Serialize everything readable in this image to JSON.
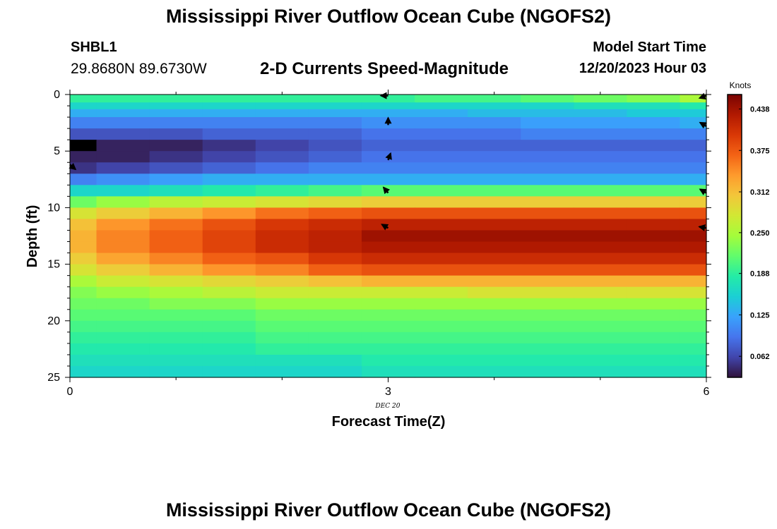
{
  "header": {
    "title": "Mississippi River Outflow Ocean Cube (NGOFS2)",
    "station_id": "SHBL1",
    "coords": "29.8680N  89.6730W",
    "model_start_label": "Model Start Time",
    "model_start_value": "12/20/2023 Hour 03"
  },
  "footer": {
    "title": "Mississippi River Outflow Ocean Cube (NGOFS2)"
  },
  "chart_data": {
    "type": "heatmap",
    "title": "2-D Currents Speed-Magnitude",
    "xlabel": "Forecast Time(Z)",
    "ylabel": "Depth (ft)",
    "xlim": [
      0,
      6
    ],
    "ylim": [
      25,
      0
    ],
    "x_ticks": [
      0,
      3,
      6
    ],
    "y_ticks": [
      0,
      5,
      10,
      15,
      20,
      25
    ],
    "date_label": "DEC 20",
    "colorbar": {
      "label": "Knots",
      "min": 0.03,
      "max": 0.46,
      "ticks": [
        0.062,
        0.125,
        0.188,
        0.25,
        0.312,
        0.375,
        0.438
      ],
      "tick_labels": [
        "0.062",
        "0.125",
        "0.188",
        "0.250",
        "0.312",
        "0.375",
        "0.438"
      ],
      "colors": [
        "#30123b",
        "#4145ab",
        "#4675ed",
        "#39a2fc",
        "#1bcfd4",
        "#24eca6",
        "#61fc6c",
        "#a4fc3b",
        "#d1e834",
        "#f3c63a",
        "#fe9b2d",
        "#f36315",
        "#d93806",
        "#b11901",
        "#7a0402"
      ]
    },
    "columns_x": [
      0,
      0.5,
      1,
      1.5,
      2,
      2.5,
      3,
      3.5,
      4,
      4.5,
      5,
      5.5,
      6
    ],
    "rows_depth": [
      0.3,
      1.1,
      1.5,
      2.5,
      3.5,
      4.5,
      5.5,
      6.5,
      7.5,
      8.5,
      9.5,
      10.5,
      11.5,
      12.5,
      13.5,
      14.5,
      15.5,
      16.5,
      17.5,
      18.5,
      19.5,
      20.5,
      21.5,
      22.5,
      23.5,
      24.5
    ],
    "grid": [
      [
        0.19,
        0.19,
        0.19,
        0.19,
        0.19,
        0.19,
        0.19,
        0.2,
        0.2,
        0.21,
        0.22,
        0.23,
        0.25
      ],
      [
        0.16,
        0.16,
        0.16,
        0.16,
        0.16,
        0.16,
        0.16,
        0.16,
        0.16,
        0.16,
        0.17,
        0.17,
        0.18
      ],
      [
        0.13,
        0.13,
        0.13,
        0.13,
        0.13,
        0.13,
        0.13,
        0.13,
        0.14,
        0.14,
        0.14,
        0.15,
        0.15
      ],
      [
        0.1,
        0.1,
        0.1,
        0.1,
        0.1,
        0.1,
        0.11,
        0.11,
        0.11,
        0.12,
        0.12,
        0.12,
        0.13
      ],
      [
        0.07,
        0.07,
        0.07,
        0.08,
        0.08,
        0.08,
        0.09,
        0.09,
        0.09,
        0.1,
        0.1,
        0.1,
        0.1
      ],
      [
        0.03,
        0.04,
        0.04,
        0.05,
        0.06,
        0.07,
        0.08,
        0.08,
        0.08,
        0.08,
        0.08,
        0.08,
        0.08
      ],
      [
        0.04,
        0.04,
        0.05,
        0.06,
        0.07,
        0.08,
        0.09,
        0.09,
        0.09,
        0.09,
        0.09,
        0.09,
        0.09
      ],
      [
        0.05,
        0.06,
        0.07,
        0.08,
        0.09,
        0.1,
        0.1,
        0.1,
        0.1,
        0.1,
        0.1,
        0.1,
        0.1
      ],
      [
        0.1,
        0.11,
        0.12,
        0.13,
        0.13,
        0.13,
        0.13,
        0.13,
        0.13,
        0.13,
        0.13,
        0.13,
        0.13
      ],
      [
        0.16,
        0.16,
        0.17,
        0.18,
        0.19,
        0.2,
        0.21,
        0.21,
        0.21,
        0.21,
        0.21,
        0.21,
        0.21
      ],
      [
        0.22,
        0.24,
        0.26,
        0.27,
        0.28,
        0.29,
        0.3,
        0.3,
        0.3,
        0.3,
        0.3,
        0.3,
        0.3
      ],
      [
        0.28,
        0.3,
        0.32,
        0.34,
        0.36,
        0.37,
        0.38,
        0.38,
        0.38,
        0.38,
        0.38,
        0.38,
        0.38
      ],
      [
        0.31,
        0.34,
        0.36,
        0.38,
        0.4,
        0.41,
        0.42,
        0.42,
        0.42,
        0.42,
        0.42,
        0.42,
        0.42
      ],
      [
        0.32,
        0.35,
        0.37,
        0.39,
        0.41,
        0.42,
        0.44,
        0.44,
        0.44,
        0.44,
        0.44,
        0.44,
        0.44
      ],
      [
        0.32,
        0.35,
        0.37,
        0.39,
        0.41,
        0.42,
        0.43,
        0.43,
        0.43,
        0.43,
        0.43,
        0.43,
        0.43
      ],
      [
        0.3,
        0.33,
        0.35,
        0.37,
        0.38,
        0.4,
        0.41,
        0.41,
        0.41,
        0.41,
        0.41,
        0.41,
        0.41
      ],
      [
        0.28,
        0.3,
        0.32,
        0.34,
        0.35,
        0.37,
        0.38,
        0.38,
        0.38,
        0.38,
        0.38,
        0.38,
        0.38
      ],
      [
        0.25,
        0.27,
        0.28,
        0.29,
        0.3,
        0.31,
        0.32,
        0.32,
        0.32,
        0.32,
        0.32,
        0.32,
        0.32
      ],
      [
        0.23,
        0.24,
        0.25,
        0.26,
        0.27,
        0.27,
        0.27,
        0.27,
        0.28,
        0.28,
        0.28,
        0.28,
        0.28
      ],
      [
        0.22,
        0.22,
        0.23,
        0.23,
        0.24,
        0.24,
        0.24,
        0.24,
        0.24,
        0.24,
        0.24,
        0.24,
        0.24
      ],
      [
        0.21,
        0.21,
        0.21,
        0.21,
        0.22,
        0.22,
        0.22,
        0.22,
        0.22,
        0.22,
        0.22,
        0.22,
        0.22
      ],
      [
        0.2,
        0.2,
        0.2,
        0.2,
        0.21,
        0.21,
        0.21,
        0.21,
        0.21,
        0.21,
        0.21,
        0.21,
        0.21
      ],
      [
        0.19,
        0.19,
        0.19,
        0.19,
        0.2,
        0.2,
        0.2,
        0.2,
        0.2,
        0.2,
        0.2,
        0.2,
        0.2
      ],
      [
        0.18,
        0.18,
        0.18,
        0.18,
        0.19,
        0.19,
        0.19,
        0.19,
        0.19,
        0.19,
        0.19,
        0.19,
        0.19
      ],
      [
        0.17,
        0.17,
        0.17,
        0.17,
        0.17,
        0.17,
        0.18,
        0.18,
        0.18,
        0.18,
        0.18,
        0.18,
        0.18
      ],
      [
        0.16,
        0.16,
        0.16,
        0.16,
        0.16,
        0.16,
        0.17,
        0.17,
        0.17,
        0.17,
        0.17,
        0.17,
        0.17
      ]
    ],
    "vectors": [
      {
        "x": 3,
        "depth": 0.1,
        "dir_deg": 180
      },
      {
        "x": 6,
        "depth": 0.1,
        "dir_deg": 200
      },
      {
        "x": 3,
        "depth": 2.7,
        "dir_deg": 90
      },
      {
        "x": 6,
        "depth": 2.8,
        "dir_deg": 150
      },
      {
        "x": 0,
        "depth": 6.2,
        "dir_deg": -40
      },
      {
        "x": 3,
        "depth": 5.8,
        "dir_deg": 70
      },
      {
        "x": 3,
        "depth": 8.7,
        "dir_deg": 130
      },
      {
        "x": 6,
        "depth": 8.7,
        "dir_deg": 150
      },
      {
        "x": 3,
        "depth": 11.8,
        "dir_deg": 150
      },
      {
        "x": 6,
        "depth": 11.8,
        "dir_deg": 170
      }
    ]
  }
}
